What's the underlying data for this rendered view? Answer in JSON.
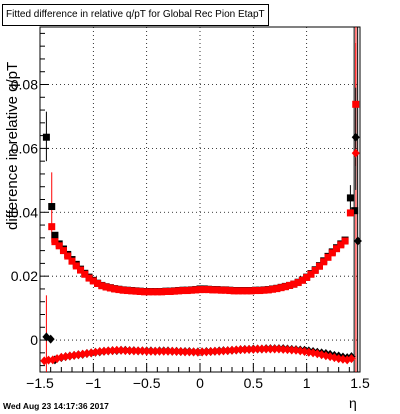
{
  "chart_data": {
    "type": "scatter",
    "title": "Fitted difference in relative q/pT for Global Rec Pion EtapT",
    "xlabel": "η",
    "ylabel": "difference in relative q/pT",
    "xlim": [
      -1.5,
      1.5
    ],
    "ylim": [
      -0.01,
      0.098
    ],
    "xticks": [
      -1.5,
      -1,
      -0.5,
      0,
      0.5,
      1,
      1.5
    ],
    "xtick_labels": [
      "−1.5",
      "−1",
      "−0.5",
      "0",
      "0.5",
      "1",
      "1.5"
    ],
    "yticks": [
      0,
      0.02,
      0.04,
      0.06,
      0.08
    ],
    "ytick_labels": [
      "0",
      "0.02",
      "0.04",
      "0.06",
      "0.08"
    ],
    "grid": true,
    "legend": "none",
    "series": [
      {
        "color": "#000000",
        "marker": "square",
        "x": [
          -1.44,
          -1.39,
          -1.36,
          -1.32,
          -1.28,
          -1.24,
          -1.2,
          -1.16,
          -1.12,
          -1.08,
          -1.04,
          -1.0,
          -0.96,
          -0.92,
          -0.88,
          -0.84,
          -0.8,
          -0.76,
          -0.72,
          -0.68,
          -0.64,
          -0.6,
          -0.56,
          -0.52,
          -0.48,
          -0.44,
          -0.4,
          -0.36,
          -0.32,
          -0.28,
          -0.24,
          -0.2,
          -0.16,
          -0.12,
          -0.08,
          -0.04,
          0.0,
          0.04,
          0.08,
          0.12,
          0.16,
          0.2,
          0.24,
          0.28,
          0.32,
          0.36,
          0.4,
          0.44,
          0.48,
          0.52,
          0.56,
          0.6,
          0.64,
          0.68,
          0.72,
          0.76,
          0.8,
          0.84,
          0.88,
          0.92,
          0.96,
          1.0,
          1.04,
          1.08,
          1.12,
          1.16,
          1.2,
          1.24,
          1.28,
          1.32,
          1.36,
          1.41,
          1.45
        ],
        "y": [
          0.0635,
          0.0418,
          0.0328,
          0.0301,
          0.0285,
          0.0268,
          0.0252,
          0.0237,
          0.0222,
          0.0209,
          0.0197,
          0.0187,
          0.0178,
          0.0171,
          0.0167,
          0.0164,
          0.0161,
          0.0159,
          0.0157,
          0.0156,
          0.0155,
          0.0154,
          0.0153,
          0.0152,
          0.0152,
          0.0152,
          0.0152,
          0.0152,
          0.0153,
          0.0153,
          0.0154,
          0.0155,
          0.0156,
          0.0156,
          0.0157,
          0.0158,
          0.016,
          0.016,
          0.0159,
          0.0158,
          0.0158,
          0.0157,
          0.0157,
          0.0156,
          0.0155,
          0.0155,
          0.0155,
          0.0155,
          0.0155,
          0.0156,
          0.0156,
          0.0157,
          0.0158,
          0.016,
          0.0162,
          0.0165,
          0.0168,
          0.0171,
          0.0175,
          0.0181,
          0.0188,
          0.0197,
          0.0208,
          0.022,
          0.0233,
          0.0248,
          0.0262,
          0.0276,
          0.0289,
          0.0301,
          0.0313,
          0.0445,
          0.0405
        ]
      },
      {
        "color": "#ff0000",
        "marker": "square",
        "x": [
          -1.39,
          -1.36,
          -1.32,
          -1.28,
          -1.24,
          -1.2,
          -1.16,
          -1.12,
          -1.08,
          -1.04,
          -1.0,
          -0.96,
          -0.92,
          -0.88,
          -0.84,
          -0.8,
          -0.76,
          -0.72,
          -0.68,
          -0.64,
          -0.6,
          -0.56,
          -0.52,
          -0.48,
          -0.44,
          -0.4,
          -0.36,
          -0.32,
          -0.28,
          -0.24,
          -0.2,
          -0.16,
          -0.12,
          -0.08,
          -0.04,
          0.0,
          0.04,
          0.08,
          0.12,
          0.16,
          0.2,
          0.24,
          0.28,
          0.32,
          0.36,
          0.4,
          0.44,
          0.48,
          0.52,
          0.56,
          0.6,
          0.64,
          0.68,
          0.72,
          0.76,
          0.8,
          0.84,
          0.88,
          0.92,
          0.96,
          1.0,
          1.04,
          1.08,
          1.12,
          1.16,
          1.2,
          1.24,
          1.28,
          1.32,
          1.36,
          1.41,
          1.46
        ],
        "y": [
          0.0355,
          0.0308,
          0.0295,
          0.028,
          0.0263,
          0.0247,
          0.0232,
          0.0219,
          0.0206,
          0.0194,
          0.0185,
          0.0177,
          0.017,
          0.0166,
          0.0163,
          0.016,
          0.0158,
          0.0156,
          0.0155,
          0.0154,
          0.0153,
          0.0152,
          0.0151,
          0.0151,
          0.0151,
          0.0151,
          0.0151,
          0.0152,
          0.0152,
          0.0153,
          0.0154,
          0.0155,
          0.0155,
          0.0156,
          0.0157,
          0.0158,
          0.0158,
          0.0158,
          0.0157,
          0.0157,
          0.0156,
          0.0156,
          0.0155,
          0.0154,
          0.0154,
          0.0154,
          0.0154,
          0.0154,
          0.0155,
          0.0155,
          0.0156,
          0.0157,
          0.0159,
          0.0161,
          0.0164,
          0.0167,
          0.0171,
          0.0175,
          0.018,
          0.0187,
          0.0196,
          0.0206,
          0.0218,
          0.0231,
          0.0245,
          0.0259,
          0.0273,
          0.0286,
          0.0298,
          0.031,
          0.0398,
          0.0738
        ]
      },
      {
        "color": "#000000",
        "marker": "diamond",
        "x": [
          -1.44,
          -1.4,
          -1.36,
          -1.3,
          -1.26,
          -1.22,
          -1.18,
          -1.14,
          -1.1,
          -1.06,
          -1.02,
          -0.98,
          -0.94,
          -0.9,
          -0.86,
          -0.82,
          -0.78,
          -0.74,
          -0.7,
          -0.66,
          -0.62,
          -0.58,
          -0.54,
          -0.5,
          -0.46,
          -0.42,
          -0.38,
          -0.34,
          -0.3,
          -0.26,
          -0.22,
          -0.18,
          -0.14,
          -0.1,
          -0.06,
          -0.02,
          0.02,
          0.06,
          0.1,
          0.14,
          0.18,
          0.22,
          0.26,
          0.3,
          0.34,
          0.38,
          0.42,
          0.46,
          0.5,
          0.54,
          0.58,
          0.62,
          0.66,
          0.7,
          0.74,
          0.78,
          0.82,
          0.86,
          0.9,
          0.94,
          0.98,
          1.02,
          1.06,
          1.1,
          1.14,
          1.18,
          1.22,
          1.26,
          1.3,
          1.34,
          1.38,
          1.42,
          1.46,
          1.48
        ],
        "y": [
          0.001,
          0.0003,
          -0.0062,
          -0.0055,
          -0.0052,
          -0.005,
          -0.0048,
          -0.0046,
          -0.0045,
          -0.0042,
          -0.004,
          -0.0038,
          -0.0037,
          -0.0035,
          -0.0034,
          -0.0033,
          -0.0033,
          -0.0032,
          -0.0032,
          -0.0033,
          -0.0033,
          -0.0034,
          -0.0034,
          -0.0034,
          -0.0034,
          -0.0035,
          -0.0034,
          -0.0034,
          -0.0034,
          -0.0035,
          -0.0035,
          -0.0036,
          -0.0036,
          -0.0036,
          -0.0037,
          -0.0037,
          -0.0037,
          -0.0036,
          -0.0036,
          -0.0035,
          -0.0034,
          -0.0033,
          -0.0033,
          -0.0032,
          -0.0031,
          -0.003,
          -0.0029,
          -0.0029,
          -0.0028,
          -0.0028,
          -0.0028,
          -0.0027,
          -0.0027,
          -0.0027,
          -0.0027,
          -0.0027,
          -0.0028,
          -0.0029,
          -0.003,
          -0.0031,
          -0.0032,
          -0.0034,
          -0.0036,
          -0.0038,
          -0.004,
          -0.0042,
          -0.0045,
          -0.0048,
          -0.005,
          -0.0053,
          -0.0055,
          -0.0052,
          0.0635,
          0.031
        ]
      },
      {
        "color": "#ff0000",
        "marker": "diamond",
        "x": [
          -1.46,
          -1.42,
          -1.38,
          -1.34,
          -1.3,
          -1.26,
          -1.22,
          -1.18,
          -1.14,
          -1.1,
          -1.06,
          -1.02,
          -0.98,
          -0.94,
          -0.9,
          -0.86,
          -0.82,
          -0.78,
          -0.74,
          -0.7,
          -0.66,
          -0.62,
          -0.58,
          -0.54,
          -0.5,
          -0.46,
          -0.42,
          -0.38,
          -0.34,
          -0.3,
          -0.26,
          -0.22,
          -0.18,
          -0.14,
          -0.1,
          -0.06,
          -0.02,
          0.02,
          0.06,
          0.1,
          0.14,
          0.18,
          0.22,
          0.26,
          0.3,
          0.34,
          0.38,
          0.42,
          0.46,
          0.5,
          0.54,
          0.58,
          0.62,
          0.66,
          0.7,
          0.74,
          0.78,
          0.82,
          0.86,
          0.9,
          0.94,
          0.98,
          1.02,
          1.06,
          1.1,
          1.14,
          1.18,
          1.22,
          1.26,
          1.3,
          1.34,
          1.38,
          1.42,
          1.46
        ],
        "y": [
          -0.0065,
          -0.0063,
          -0.0062,
          -0.0058,
          -0.0054,
          -0.0052,
          -0.005,
          -0.0048,
          -0.0046,
          -0.0044,
          -0.0042,
          -0.004,
          -0.0038,
          -0.0036,
          -0.0035,
          -0.0034,
          -0.0033,
          -0.0032,
          -0.0032,
          -0.0033,
          -0.0033,
          -0.0034,
          -0.0034,
          -0.0034,
          -0.0035,
          -0.0035,
          -0.0035,
          -0.0035,
          -0.0035,
          -0.0035,
          -0.0035,
          -0.0036,
          -0.0036,
          -0.0037,
          -0.0037,
          -0.0037,
          -0.0038,
          -0.0037,
          -0.0037,
          -0.0036,
          -0.0035,
          -0.0035,
          -0.0034,
          -0.0033,
          -0.0032,
          -0.0031,
          -0.003,
          -0.003,
          -0.0029,
          -0.0029,
          -0.0028,
          -0.0028,
          -0.0028,
          -0.0028,
          -0.0028,
          -0.0028,
          -0.0029,
          -0.003,
          -0.0031,
          -0.0032,
          -0.0034,
          -0.0036,
          -0.0038,
          -0.004,
          -0.0043,
          -0.0046,
          -0.0049,
          -0.0052,
          -0.0055,
          -0.0058,
          -0.006,
          -0.0062,
          -0.0058,
          0.0585
        ]
      }
    ],
    "error_bars": [
      {
        "x": -1.44,
        "low": 0.056,
        "high": 0.0715,
        "color": "#000000"
      },
      {
        "x": -1.39,
        "low": 0.0305,
        "high": 0.0525,
        "color": "#ff0000"
      },
      {
        "x": -1.44,
        "low": -0.0105,
        "high": 0.014,
        "color": "#ff0000"
      },
      {
        "x": 1.41,
        "low": 0.0405,
        "high": 0.0485,
        "color": "#000000"
      },
      {
        "x": 1.46,
        "low": 0.0545,
        "high": 0.093,
        "color": "#ff0000"
      },
      {
        "x": 1.46,
        "low": 0.047,
        "high": 0.079,
        "color": "#000000"
      }
    ],
    "vertical_lines": [
      {
        "x": 1.445,
        "color": "#000000"
      },
      {
        "x": 1.462,
        "color": "#ff0000"
      },
      {
        "x": 1.478,
        "color": "#000000"
      }
    ]
  },
  "page": {
    "title": "Fitted difference in relative q/pT for Global Rec Pion EtapT",
    "ylabel": "difference in relative q/pT",
    "xlabel": "η",
    "timestamp": "Wed Aug 23 14:17:36 2017"
  }
}
